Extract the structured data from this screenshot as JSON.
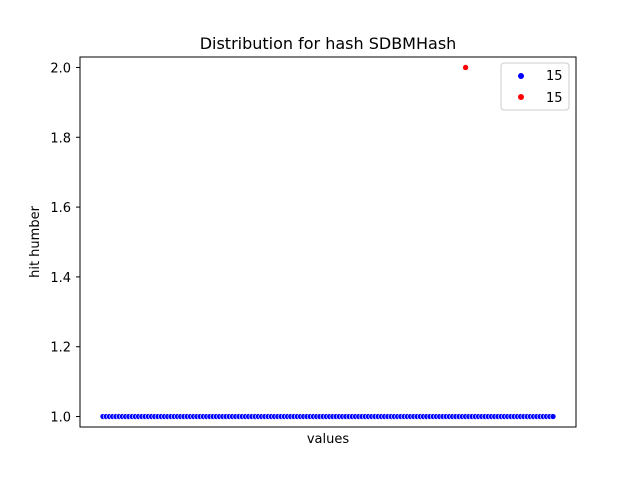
{
  "chart_data": {
    "type": "scatter",
    "title": "Distribution for hash SDBMHash",
    "xlabel": "values",
    "ylabel": "hit humber",
    "ylim": [
      0.97,
      2.03
    ],
    "yticks": [
      "1.0",
      "1.2",
      "1.4",
      "1.6",
      "1.8",
      "2.0"
    ],
    "yvalues": [
      1.0,
      1.2,
      1.4,
      1.6,
      1.8,
      2.0
    ],
    "x_tick_labels_shown": false,
    "legend_position": "top-right",
    "series": [
      {
        "name": "15",
        "color": "#0000ff",
        "point_count": 140,
        "y": 1.0
      },
      {
        "name": "15",
        "color": "#ff0000",
        "point_count": 1,
        "y": 2.0,
        "x_index": 112
      }
    ]
  }
}
